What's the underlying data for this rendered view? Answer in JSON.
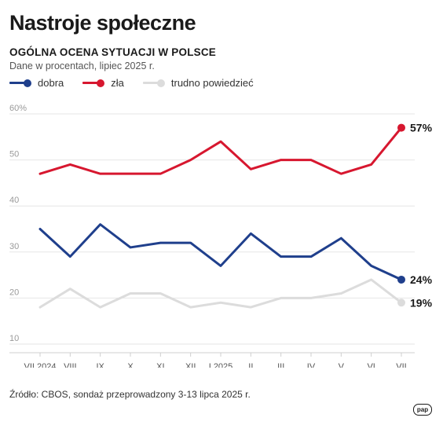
{
  "title": "Nastroje społeczne",
  "subtitle": "OGÓLNA OCENA SYTUACJI W POLSCE",
  "note": "Dane w procentach, lipiec 2025 r.",
  "source": "Źródło: CBOS, sondaż przeprowadzony 3-13 lipca 2025 r.",
  "logo": "pap",
  "legend": [
    {
      "label": "dobra",
      "color": "#1f3f8c"
    },
    {
      "label": "zła",
      "color": "#d7172f"
    },
    {
      "label": "trudno powiedzieć",
      "color": "#dcdcdc"
    }
  ],
  "chart_data": {
    "type": "line",
    "categories": [
      "VII 2024",
      "VIII",
      "IX",
      "X",
      "XI",
      "XII",
      "I 2025",
      "II",
      "III",
      "IV",
      "V",
      "VI",
      "VII"
    ],
    "series": [
      {
        "name": "dobra",
        "color": "#1f3f8c",
        "values": [
          35,
          29,
          36,
          31,
          32,
          32,
          27,
          34,
          29,
          29,
          33,
          27,
          24
        ],
        "end_label": "24%"
      },
      {
        "name": "zła",
        "color": "#d7172f",
        "values": [
          47,
          49,
          47,
          47,
          47,
          50,
          54,
          48,
          50,
          50,
          47,
          49,
          57
        ],
        "end_label": "57%"
      },
      {
        "name": "trudno powiedzieć",
        "color": "#dcdcdc",
        "values": [
          18,
          22,
          18,
          21,
          21,
          18,
          19,
          18,
          20,
          20,
          21,
          24,
          19
        ],
        "end_label": "19%"
      }
    ],
    "yticks": [
      "60%",
      "50",
      "40",
      "30",
      "20",
      "10"
    ],
    "ylim": [
      10,
      60
    ],
    "grid": true
  }
}
